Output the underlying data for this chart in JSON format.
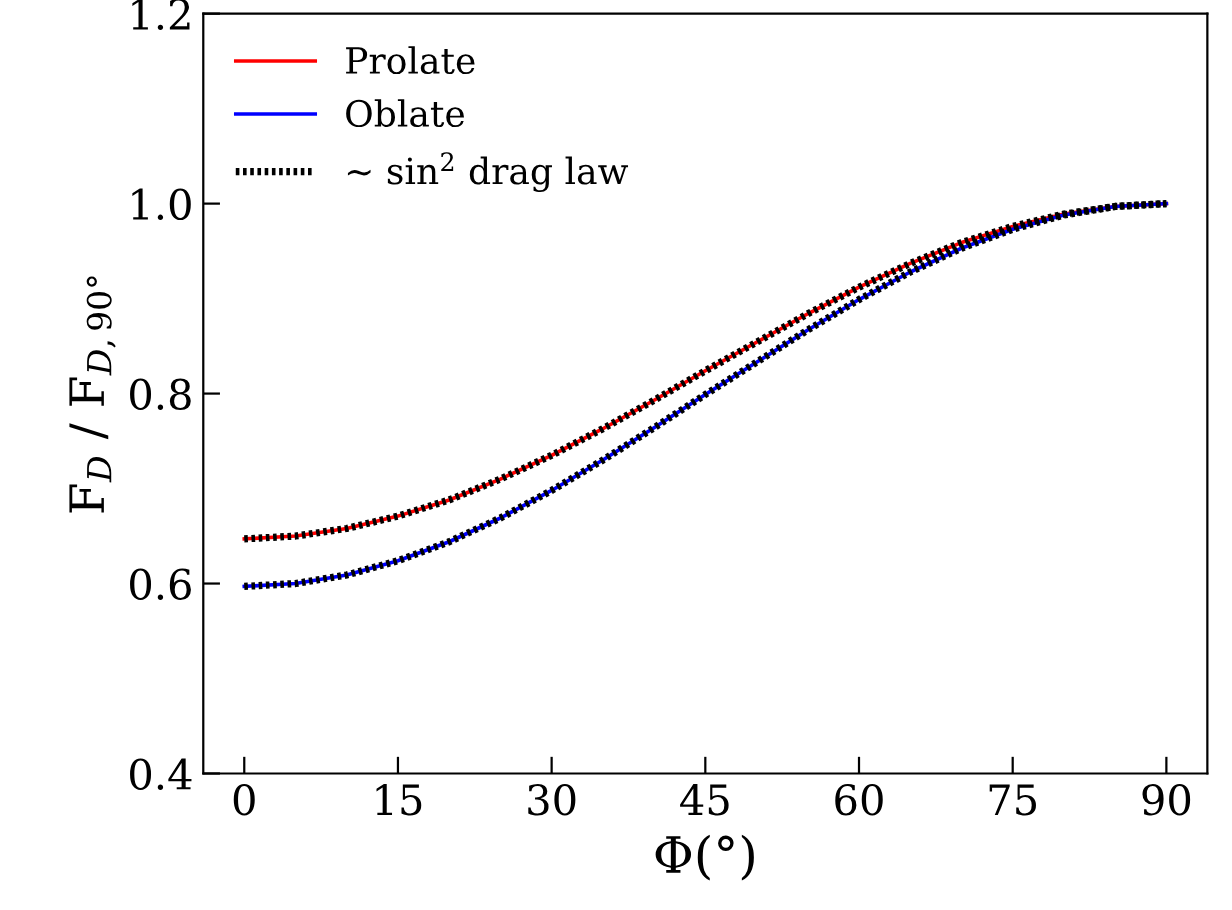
{
  "chart_data": {
    "type": "line",
    "xlabel": "Φ(°)",
    "ylabel": "F$_{D}$ / F$_{D,90°}$",
    "x": [
      0,
      5,
      10,
      15,
      20,
      25,
      30,
      35,
      40,
      45,
      50,
      55,
      60,
      65,
      70,
      75,
      80,
      85,
      90
    ],
    "series": [
      {
        "name": "Prolate",
        "color": "#ff0000",
        "line_style": "solid",
        "values": [
          0.647,
          0.65,
          0.658,
          0.671,
          0.688,
          0.71,
          0.735,
          0.763,
          0.793,
          0.824,
          0.854,
          0.884,
          0.912,
          0.937,
          0.959,
          0.976,
          0.989,
          0.997,
          1.0
        ]
      },
      {
        "name": "Oblate",
        "color": "#0000ff",
        "line_style": "solid",
        "values": [
          0.597,
          0.6,
          0.609,
          0.624,
          0.644,
          0.669,
          0.698,
          0.73,
          0.764,
          0.799,
          0.833,
          0.867,
          0.899,
          0.928,
          0.953,
          0.973,
          0.988,
          0.997,
          1.0
        ]
      },
      {
        "name": "∼ sin$^{2}$ drag law",
        "color": "#000000",
        "line_style": "dotted",
        "values": [
          0.647,
          0.65,
          0.658,
          0.671,
          0.688,
          0.71,
          0.735,
          0.763,
          0.793,
          0.824,
          0.854,
          0.884,
          0.912,
          0.937,
          0.959,
          0.976,
          0.989,
          0.997,
          1.0
        ]
      },
      {
        "color": "#000000",
        "line_style": "dotted",
        "values": [
          0.597,
          0.6,
          0.609,
          0.624,
          0.644,
          0.669,
          0.698,
          0.73,
          0.764,
          0.799,
          0.833,
          0.867,
          0.899,
          0.928,
          0.953,
          0.973,
          0.988,
          0.997,
          1.0
        ]
      }
    ],
    "xlim": [
      -4,
      94
    ],
    "xticks": [
      0,
      15,
      30,
      45,
      60,
      75,
      90
    ],
    "ylim": [
      0.4,
      1.2
    ],
    "yticks": [
      0.4,
      0.6,
      0.8,
      {
        "value": 1.0,
        "label": "1.0"
      },
      1.2
    ],
    "legend": "top left",
    "grid": false
  }
}
